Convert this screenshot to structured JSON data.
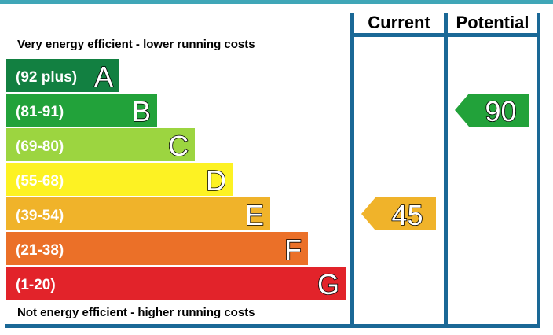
{
  "chart_data": {
    "type": "bar",
    "header_current": "Current",
    "header_potential": "Potential",
    "top_text": "Very energy efficient - lower running costs",
    "bottom_text": "Not energy efficient - higher running costs",
    "bands": [
      {
        "range": "(92 plus)",
        "letter": "A",
        "color": "#128041"
      },
      {
        "range": "(81-91)",
        "letter": "B",
        "color": "#22a23a"
      },
      {
        "range": "(69-80)",
        "letter": "C",
        "color": "#9cd540"
      },
      {
        "range": "(55-68)",
        "letter": "D",
        "color": "#fdf223"
      },
      {
        "range": "(39-54)",
        "letter": "E",
        "color": "#f0b32a"
      },
      {
        "range": "(21-38)",
        "letter": "F",
        "color": "#eb7028"
      },
      {
        "range": "(1-20)",
        "letter": "G",
        "color": "#e2232a"
      }
    ],
    "current": {
      "value": 45,
      "band": "E",
      "color": "#f0b32a"
    },
    "potential": {
      "value": 90,
      "band": "B",
      "color": "#22a23a"
    },
    "frame_color": "#1a6896",
    "top_rule_color": "#3fa6b7"
  }
}
